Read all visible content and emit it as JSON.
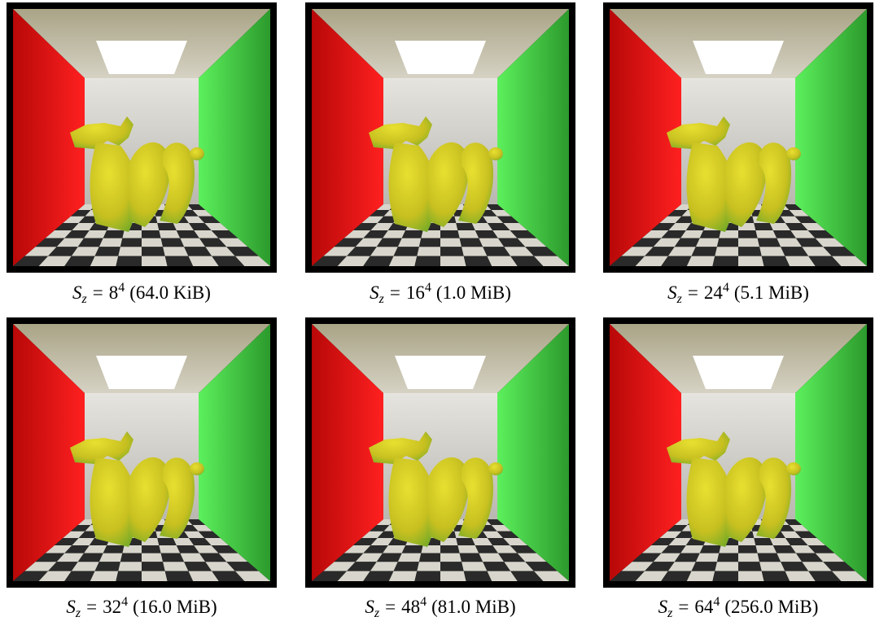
{
  "figure": {
    "symbol": "S",
    "subscript": "z",
    "relation": "=",
    "panels": [
      {
        "base": "8",
        "exponent": "4",
        "size": "(64.0 KiB)"
      },
      {
        "base": "16",
        "exponent": "4",
        "size": "(1.0 MiB)"
      },
      {
        "base": "24",
        "exponent": "4",
        "size": "(5.1 MiB)"
      },
      {
        "base": "32",
        "exponent": "4",
        "size": "(16.0 MiB)"
      },
      {
        "base": "48",
        "exponent": "4",
        "size": "(81.0 MiB)"
      },
      {
        "base": "64",
        "exponent": "4",
        "size": "(256.0 MiB)"
      }
    ]
  }
}
